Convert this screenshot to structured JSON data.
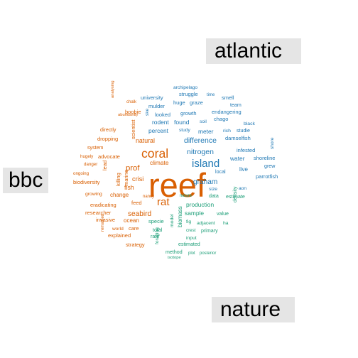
{
  "chart_data": {
    "type": "comparison-wordcloud",
    "title": "",
    "groups": [
      {
        "name": "atlantic",
        "color": "#1f78b4"
      },
      {
        "name": "bbc",
        "color": "#d95f02"
      },
      {
        "name": "nature",
        "color": "#1b9e77"
      }
    ],
    "words": [
      {
        "text": "reef",
        "group": "bbc",
        "weight": 100
      },
      {
        "text": "coral",
        "group": "bbc",
        "weight": 52
      },
      {
        "text": "island",
        "group": "atlantic",
        "weight": 42
      },
      {
        "text": "rat",
        "group": "bbc",
        "weight": 42
      },
      {
        "text": "prof",
        "group": "bbc",
        "weight": 38
      },
      {
        "text": "difference",
        "group": "atlantic",
        "weight": 34
      },
      {
        "text": "nitrogen",
        "group": "atlantic",
        "weight": 34
      },
      {
        "text": "graham",
        "group": "atlantic",
        "weight": 32
      },
      {
        "text": "seabird",
        "group": "bbc",
        "weight": 32
      },
      {
        "text": "crisi",
        "group": "bbc",
        "weight": 28
      },
      {
        "text": "fish",
        "group": "bbc",
        "weight": 26
      },
      {
        "text": "natural",
        "group": "bbc",
        "weight": 26
      },
      {
        "text": "climate",
        "group": "bbc",
        "weight": 24
      },
      {
        "text": "found",
        "group": "atlantic",
        "weight": 25
      },
      {
        "text": "rodent",
        "group": "atlantic",
        "weight": 24
      },
      {
        "text": "percent",
        "group": "atlantic",
        "weight": 24
      },
      {
        "text": "meter",
        "group": "atlantic",
        "weight": 24
      },
      {
        "text": "water",
        "group": "atlantic",
        "weight": 24
      },
      {
        "text": "live",
        "group": "atlantic",
        "weight": 22
      },
      {
        "text": "production",
        "group": "nature",
        "weight": 24
      },
      {
        "text": "sample",
        "group": "nature",
        "weight": 24
      },
      {
        "text": "biomass",
        "group": "nature",
        "weight": 22
      },
      {
        "text": "change",
        "group": "bbc",
        "weight": 22
      },
      {
        "text": "ocean",
        "group": "bbc",
        "weight": 22
      },
      {
        "text": "advocate",
        "group": "bbc",
        "weight": 20
      },
      {
        "text": "researcher",
        "group": "bbc",
        "weight": 20
      },
      {
        "text": "scientist",
        "group": "bbc",
        "weight": 20
      },
      {
        "text": "marine",
        "group": "bbc",
        "weight": 18
      },
      {
        "text": "killing",
        "group": "bbc",
        "weight": 18
      },
      {
        "text": "lead",
        "group": "bbc",
        "weight": 18
      },
      {
        "text": "dropping",
        "group": "bbc",
        "weight": 18
      },
      {
        "text": "biodiversity",
        "group": "bbc",
        "weight": 18
      },
      {
        "text": "eradicating",
        "group": "bbc",
        "weight": 18
      },
      {
        "text": "invasive",
        "group": "bbc",
        "weight": 18
      },
      {
        "text": "explained",
        "group": "bbc",
        "weight": 18
      },
      {
        "text": "strategy",
        "group": "bbc",
        "weight": 18
      },
      {
        "text": "care",
        "group": "bbc",
        "weight": 18
      },
      {
        "text": "feed",
        "group": "bbc",
        "weight": 18
      },
      {
        "text": "boobie",
        "group": "bbc",
        "weight": 18
      },
      {
        "text": "directly",
        "group": "bbc",
        "weight": 16
      },
      {
        "text": "system",
        "group": "bbc",
        "weight": 16
      },
      {
        "text": "growing",
        "group": "bbc",
        "weight": 15
      },
      {
        "text": "world",
        "group": "bbc",
        "weight": 14
      },
      {
        "text": "hugely",
        "group": "bbc",
        "weight": 12
      },
      {
        "text": "danger",
        "group": "bbc",
        "weight": 12
      },
      {
        "text": "ongoing",
        "group": "bbc",
        "weight": 12
      },
      {
        "text": "remained",
        "group": "bbc",
        "weight": 11
      },
      {
        "text": "nancy",
        "group": "bbc",
        "weight": 11
      },
      {
        "text": "chalk",
        "group": "bbc",
        "weight": 11
      },
      {
        "text": "analysing",
        "group": "bbc",
        "weight": 10
      },
      {
        "text": "abundantly",
        "group": "bbc",
        "weight": 10
      },
      {
        "text": "university",
        "group": "atlantic",
        "weight": 18
      },
      {
        "text": "struggle",
        "group": "atlantic",
        "weight": 18
      },
      {
        "text": "mulder",
        "group": "atlantic",
        "weight": 18
      },
      {
        "text": "huge",
        "group": "atlantic",
        "weight": 18
      },
      {
        "text": "graze",
        "group": "atlantic",
        "weight": 18
      },
      {
        "text": "smell",
        "group": "atlantic",
        "weight": 18
      },
      {
        "text": "team",
        "group": "atlantic",
        "weight": 16
      },
      {
        "text": "chago",
        "group": "atlantic",
        "weight": 18
      },
      {
        "text": "endangering",
        "group": "atlantic",
        "weight": 18
      },
      {
        "text": "growth",
        "group": "atlantic",
        "weight": 18
      },
      {
        "text": "looked",
        "group": "atlantic",
        "weight": 18
      },
      {
        "text": "damselfish",
        "group": "atlantic",
        "weight": 18
      },
      {
        "text": "infested",
        "group": "atlantic",
        "weight": 18
      },
      {
        "text": "shoreline",
        "group": "atlantic",
        "weight": 18
      },
      {
        "text": "parrotfish",
        "group": "atlantic",
        "weight": 18
      },
      {
        "text": "grew",
        "group": "atlantic",
        "weight": 16
      },
      {
        "text": "local",
        "group": "atlantic",
        "weight": 16
      },
      {
        "text": "studie",
        "group": "atlantic",
        "weight": 16
      },
      {
        "text": "rich",
        "group": "atlantic",
        "weight": 15
      },
      {
        "text": "black",
        "group": "atlantic",
        "weight": 15
      },
      {
        "text": "size",
        "group": "atlantic",
        "weight": 15
      },
      {
        "text": "soil",
        "group": "atlantic",
        "weight": 14
      },
      {
        "text": "study",
        "group": "atlantic",
        "weight": 14
      },
      {
        "text": "aon",
        "group": "atlantic",
        "weight": 14
      },
      {
        "text": "shore",
        "group": "atlantic",
        "weight": 14
      },
      {
        "text": "ske",
        "group": "atlantic",
        "weight": 14
      },
      {
        "text": "archipelago",
        "group": "atlantic",
        "weight": 14
      },
      {
        "text": "time",
        "group": "atlantic",
        "weight": 11
      },
      {
        "text": "data",
        "group": "nature",
        "weight": 16
      },
      {
        "text": "estimate",
        "group": "nature",
        "weight": 16
      },
      {
        "text": "value",
        "group": "nature",
        "weight": 16
      },
      {
        "text": "density",
        "group": "nature",
        "weight": 16
      },
      {
        "text": "specie",
        "group": "nature",
        "weight": 18
      },
      {
        "text": "total",
        "group": "nature",
        "weight": 16
      },
      {
        "text": "rate",
        "group": "nature",
        "weight": 16
      },
      {
        "text": "primary",
        "group": "nature",
        "weight": 16
      },
      {
        "text": "input",
        "group": "nature",
        "weight": 15
      },
      {
        "text": "estimated",
        "group": "nature",
        "weight": 16
      },
      {
        "text": "method",
        "group": "nature",
        "weight": 16
      },
      {
        "text": "foraging",
        "group": "nature",
        "weight": 14
      },
      {
        "text": "model",
        "group": "nature",
        "weight": 15
      },
      {
        "text": "fig",
        "group": "nature",
        "weight": 15
      },
      {
        "text": "adjacent",
        "group": "nature",
        "weight": 15
      },
      {
        "text": "ha",
        "group": "nature",
        "weight": 15
      },
      {
        "text": "crest",
        "group": "nature",
        "weight": 12
      },
      {
        "text": "nature",
        "group": "nature",
        "weight": 11
      },
      {
        "text": "plot",
        "group": "nature",
        "weight": 11
      },
      {
        "text": "posterior",
        "group": "nature",
        "weight": 11
      },
      {
        "text": "isotope",
        "group": "nature",
        "weight": 10
      }
    ],
    "legend": "group labels around cloud"
  }
}
